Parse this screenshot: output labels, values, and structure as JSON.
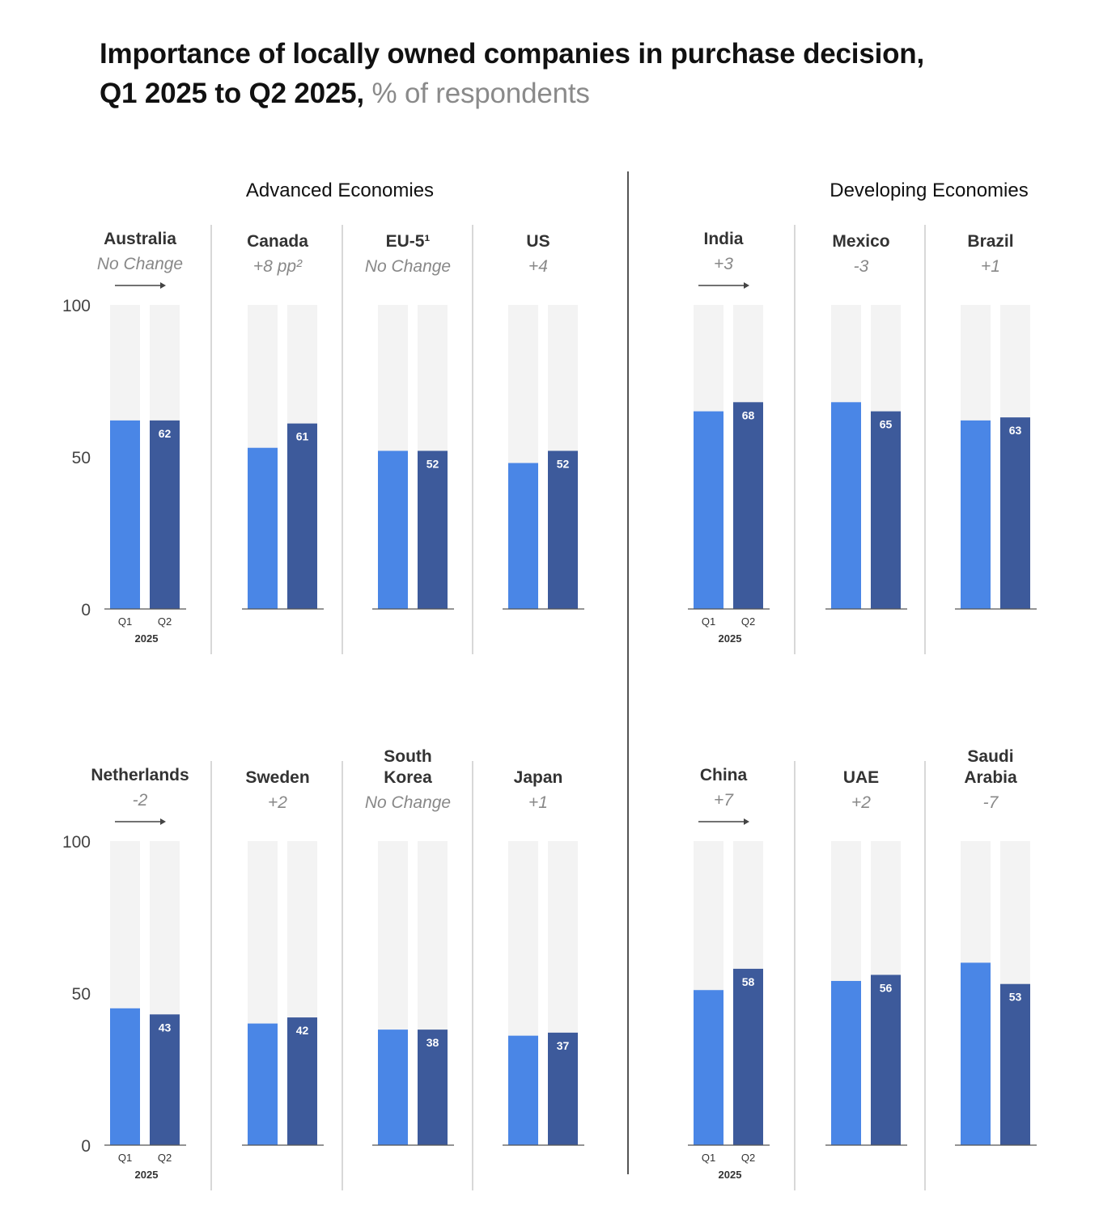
{
  "title": {
    "line1": "Importance of locally owned companies in purchase decision,",
    "line2": "Q1 2025 to Q2 2025,",
    "unit": "% of respondents"
  },
  "colors": {
    "q1": "#4a86e6",
    "q2": "#3d5a9b",
    "track": "#f3f3f3",
    "axis": "#555555",
    "divider": "#cccccc"
  },
  "chart_data": {
    "type": "bar",
    "title": "Importance of locally owned companies in purchase decision, Q1 2025 to Q2 2025",
    "ylabel": "% of respondents",
    "ylim": [
      0,
      100
    ],
    "yticks": [
      "0",
      "50",
      "100"
    ],
    "xticks": [
      "Q1",
      "Q2"
    ],
    "year_label": "2025",
    "sections": [
      "Advanced Economies",
      "Developing Economies"
    ],
    "series": [
      {
        "name": "Q1 2025"
      },
      {
        "name": "Q2 2025"
      }
    ],
    "countries": [
      {
        "name": [
          "Australia"
        ],
        "change": "No Change",
        "arrow": true,
        "q1": 62,
        "q2": 62,
        "label": "62"
      },
      {
        "name": [
          "Canada"
        ],
        "change": "+8 pp²",
        "arrow": false,
        "q1": 53,
        "q2": 61,
        "label": "61"
      },
      {
        "name": [
          "EU-5¹"
        ],
        "change": "No Change",
        "arrow": false,
        "q1": 52,
        "q2": 52,
        "label": "52"
      },
      {
        "name": [
          "US"
        ],
        "change": "+4",
        "arrow": false,
        "q1": 48,
        "q2": 52,
        "label": "52"
      },
      {
        "name": [
          "India"
        ],
        "change": "+3",
        "arrow": true,
        "q1": 65,
        "q2": 68,
        "label": "68"
      },
      {
        "name": [
          "Mexico"
        ],
        "change": "-3",
        "arrow": false,
        "q1": 68,
        "q2": 65,
        "label": "65"
      },
      {
        "name": [
          "Brazil"
        ],
        "change": "+1",
        "arrow": false,
        "q1": 62,
        "q2": 63,
        "label": "63"
      },
      {
        "name": [
          "Netherlands"
        ],
        "change": "-2",
        "arrow": true,
        "q1": 45,
        "q2": 43,
        "label": "43"
      },
      {
        "name": [
          "Sweden"
        ],
        "change": "+2",
        "arrow": false,
        "q1": 40,
        "q2": 42,
        "label": "42"
      },
      {
        "name": [
          "South",
          "Korea"
        ],
        "change": "No Change",
        "arrow": false,
        "q1": 38,
        "q2": 38,
        "label": "38"
      },
      {
        "name": [
          "Japan"
        ],
        "change": "+1",
        "arrow": false,
        "q1": 36,
        "q2": 37,
        "label": "37"
      },
      {
        "name": [
          "China"
        ],
        "change": "+7",
        "arrow": true,
        "q1": 51,
        "q2": 58,
        "label": "58"
      },
      {
        "name": [
          "UAE"
        ],
        "change": "+2",
        "arrow": false,
        "q1": 54,
        "q2": 56,
        "label": "56"
      },
      {
        "name": [
          "Saudi",
          "Arabia"
        ],
        "change": "-7",
        "arrow": false,
        "q1": 60,
        "q2": 53,
        "label": "53"
      }
    ]
  }
}
